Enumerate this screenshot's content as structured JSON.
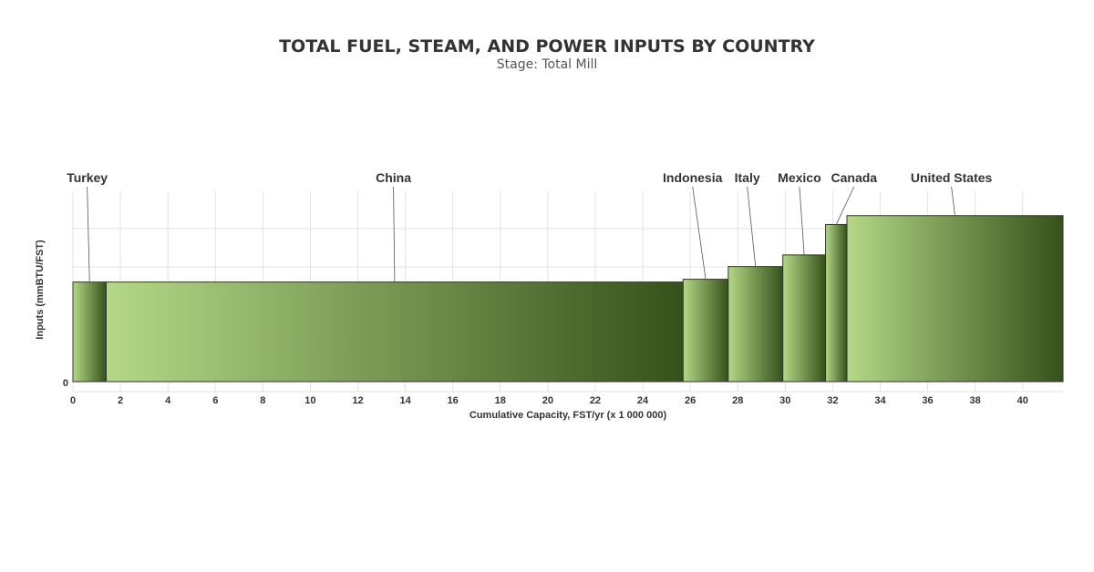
{
  "chart_data": {
    "type": "bar",
    "title": "TOTAL FUEL, STEAM, AND POWER INPUTS BY COUNTRY",
    "subtitle": "Stage: Total Mill",
    "xlabel": "Cumulative Capacity, FST/yr (x 1 000 000)",
    "ylabel": "Inputs (mmBTU/FST)",
    "xlim": [
      0,
      41.7
    ],
    "x_ticks": [
      0,
      2,
      4,
      6,
      8,
      10,
      12,
      14,
      16,
      18,
      20,
      22,
      24,
      26,
      28,
      30,
      32,
      34,
      36,
      38,
      40
    ],
    "y_tick_labels": [
      "0"
    ],
    "grid": true,
    "colors": {
      "light": "#b4d887",
      "dark": "#35511a",
      "outline": "#333333"
    },
    "bars": [
      {
        "name": "Turkey",
        "x_start": 0.0,
        "x_end": 1.4,
        "value": 0.9
      },
      {
        "name": "China",
        "x_start": 1.4,
        "x_end": 25.7,
        "value": 0.9
      },
      {
        "name": "Indonesia",
        "x_start": 25.7,
        "x_end": 27.6,
        "value": 0.925
      },
      {
        "name": "Italy",
        "x_start": 27.6,
        "x_end": 29.9,
        "value": 1.04
      },
      {
        "name": "Mexico",
        "x_start": 29.9,
        "x_end": 31.7,
        "value": 1.145
      },
      {
        "name": "Canada",
        "x_start": 31.7,
        "x_end": 32.6,
        "value": 1.42
      },
      {
        "name": "United States",
        "x_start": 32.6,
        "x_end": 41.7,
        "value": 1.5
      }
    ]
  }
}
